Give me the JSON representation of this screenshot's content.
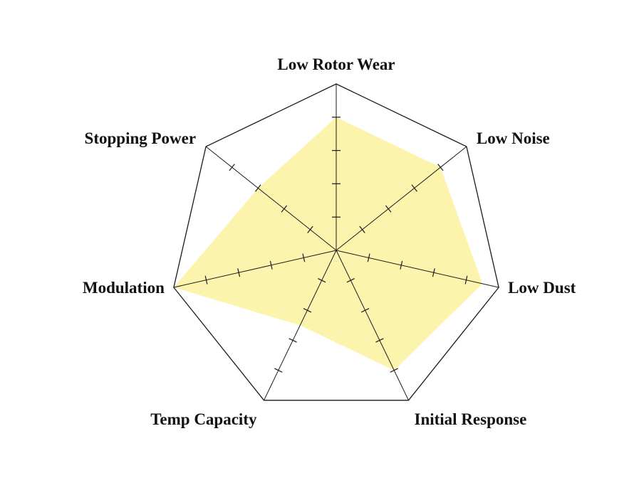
{
  "chart_data": {
    "type": "radar",
    "title": "",
    "categories": [
      "Low Rotor Wear",
      "Low Noise",
      "Low Dust",
      "Initial Response",
      "Temp Capacity",
      "Modulation",
      "Stopping Power"
    ],
    "values": [
      4,
      4,
      4.5,
      4,
      2.5,
      5,
      3
    ],
    "value_range": [
      0,
      5
    ],
    "tick_interval": 1,
    "ticks_labeled": false,
    "legend": "none",
    "grid": "radial-axes-with-tick-marks-only",
    "fill_color": "#FCF4AD",
    "line_color": "#1b1b1b",
    "label_color": "#111111",
    "background_color": "#ffffff"
  }
}
